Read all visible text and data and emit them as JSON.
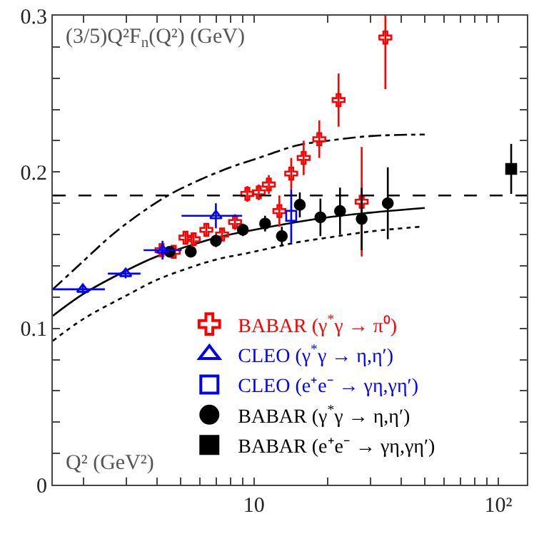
{
  "chart_data": {
    "type": "scatter",
    "xlabel": "Q² (GeV²)",
    "ylabel": "(3/5)Q²F$_{n}$(Q²) (GeV)",
    "log": "x",
    "xlim": [
      1.5,
      131
    ],
    "ylim": [
      0,
      0.3
    ],
    "xticks": [
      {
        "value": 2,
        "label": null
      },
      {
        "value": 3,
        "label": null
      },
      {
        "value": 4,
        "label": null
      },
      {
        "value": 5,
        "label": null
      },
      {
        "value": 6,
        "label": null
      },
      {
        "value": 7,
        "label": null
      },
      {
        "value": 8,
        "label": null
      },
      {
        "value": 9,
        "label": null
      },
      10,
      {
        "value": 20,
        "label": null
      },
      {
        "value": 30,
        "label": null
      },
      {
        "value": 40,
        "label": null
      },
      {
        "value": 50,
        "label": null
      },
      {
        "value": 60,
        "label": null
      },
      {
        "value": 70,
        "label": null
      },
      {
        "value": 80,
        "label": null
      },
      {
        "value": 90,
        "label": null
      },
      {
        "value": 100,
        "label": "10²"
      }
    ],
    "yticks": [
      0,
      {
        "value": 0.02,
        "label": null
      },
      {
        "value": 0.04,
        "label": null
      },
      {
        "value": 0.06,
        "label": null
      },
      {
        "value": 0.08,
        "label": null
      },
      0.1,
      {
        "value": 0.12,
        "label": null
      },
      {
        "value": 0.14,
        "label": null
      },
      {
        "value": 0.16,
        "label": null
      },
      {
        "value": 0.18,
        "label": null
      },
      0.2,
      {
        "value": 0.22,
        "label": null
      },
      {
        "value": 0.24,
        "label": null
      },
      {
        "value": 0.26,
        "label": null
      },
      {
        "value": 0.28,
        "label": null
      },
      0.3
    ],
    "legend": "bottom right",
    "ref_lines": [
      {
        "axis": "y",
        "value": 0.185,
        "color": "#000000",
        "line_style": "dashed"
      }
    ],
    "series": [
      {
        "type": "line",
        "color": "#000000",
        "line_style": "solid",
        "x": [
          1.5,
          2,
          3,
          4,
          5,
          7,
          10,
          15,
          20,
          30,
          50
        ],
        "values": [
          0.108,
          0.122,
          0.137,
          0.146,
          0.151,
          0.158,
          0.163,
          0.168,
          0.171,
          0.174,
          0.177
        ]
      },
      {
        "type": "line",
        "color": "#000000",
        "line_style": "dotted",
        "x": [
          1.5,
          2,
          3,
          4,
          5.5,
          7,
          10,
          15,
          20,
          30,
          48
        ],
        "values": [
          0.092,
          0.106,
          0.121,
          0.131,
          0.139,
          0.144,
          0.149,
          0.155,
          0.158,
          0.162,
          0.165
        ]
      },
      {
        "type": "line",
        "color": "#000000",
        "line_style": "dashdot",
        "x": [
          1.5,
          2,
          2.5,
          3,
          4.33,
          6,
          8,
          10,
          15,
          20,
          30,
          50
        ],
        "values": [
          0.125,
          0.143,
          0.157,
          0.167,
          0.184,
          0.195,
          0.203,
          0.208,
          0.217,
          0.22,
          0.223,
          0.224
        ]
      },
      {
        "name": "BABAR (γ$^{*}$γ → π⁰)",
        "color": "#ff0000",
        "marker": "cross",
        "x": [
          4.18,
          4.69,
          5.24,
          5.66,
          6.38,
          7.4,
          8.36,
          9.39,
          10.46,
          11.5,
          12.7,
          14.2,
          15.97,
          18.5,
          22.2,
          27.6,
          34.5
        ],
        "values": [
          0.15,
          0.149,
          0.158,
          0.157,
          0.163,
          0.16,
          0.168,
          0.186,
          0.187,
          0.192,
          0.175,
          0.199,
          0.209,
          0.221,
          0.246,
          0.181,
          0.286
        ],
        "errors": [
          0.004,
          0.004,
          0.004,
          0.004,
          0.004,
          0.004,
          0.005,
          0.005,
          0.005,
          0.006,
          0.01,
          0.01,
          0.011,
          0.012,
          0.017,
          0.035,
          0.033
        ]
      },
      {
        "name": "CLEO (γ$^{*}$γ → η,η′)",
        "color": "#0000ff",
        "marker": "triangle",
        "x": [
          1.99,
          2.98,
          4.22,
          6.98
        ],
        "values": [
          0.125,
          0.135,
          0.15,
          0.172
        ],
        "errors": [
          0.003,
          0.003,
          0.006,
          0.008
        ],
        "xerrors": [
          [
            1.5,
            2.45
          ],
          [
            2.52,
            3.43
          ],
          [
            3.53,
            5.05
          ],
          [
            5.05,
            8.94
          ]
        ]
      },
      {
        "name": "CLEO (e⁺e⁻ → γη,γη′)",
        "color": "#0000ff",
        "marker": "square",
        "x": [
          14.2
        ],
        "values": [
          0.172
        ],
        "errors": [
          0.017
        ]
      },
      {
        "name": "BABAR (γ$^{*}$γ → η,η′)",
        "color": "#000000",
        "marker": "circle",
        "x": [
          4.52,
          5.51,
          6.98,
          9.0,
          11.1,
          13.0,
          15.4,
          18.7,
          22.5,
          27.6,
          35.3
        ],
        "values": [
          0.149,
          0.149,
          0.156,
          0.163,
          0.167,
          0.159,
          0.179,
          0.171,
          0.175,
          0.17,
          0.18
        ],
        "errors": [
          0.003,
          0.003,
          0.004,
          0.004,
          0.005,
          0.006,
          0.008,
          0.012,
          0.015,
          0.02,
          0.023
        ]
      },
      {
        "name": "BABAR (e⁺e⁻ → γη,γη′)",
        "color": "#000000",
        "marker": "square",
        "x": [
          113
        ],
        "values": [
          0.202
        ],
        "errors": [
          0.016
        ]
      }
    ]
  }
}
